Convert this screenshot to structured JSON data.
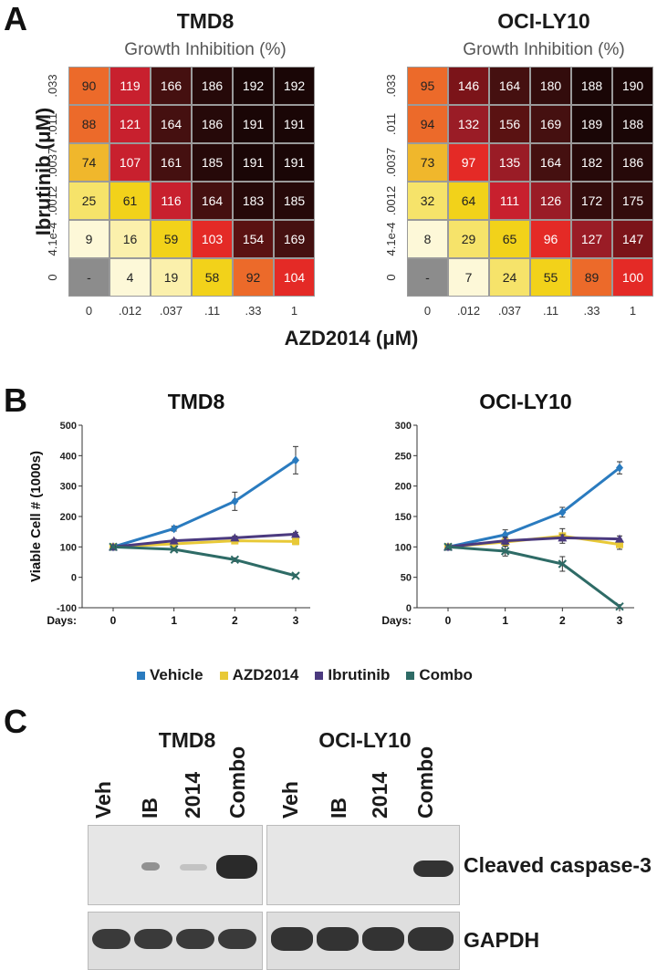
{
  "panels": {
    "a": "A",
    "b": "B",
    "c": "C"
  },
  "heatmaps": [
    {
      "title": "TMD8",
      "subtitle": "Growth Inhibition (%)",
      "rows": [
        [
          "90",
          "119",
          "166",
          "186",
          "192",
          "192"
        ],
        [
          "88",
          "121",
          "164",
          "186",
          "191",
          "191"
        ],
        [
          "74",
          "107",
          "161",
          "185",
          "191",
          "191"
        ],
        [
          "25",
          "61",
          "116",
          "164",
          "183",
          "185"
        ],
        [
          "9",
          "16",
          "59",
          "103",
          "154",
          "169"
        ],
        [
          "-",
          "4",
          "19",
          "58",
          "92",
          "104"
        ]
      ]
    },
    {
      "title": "OCI-LY10",
      "subtitle": "Growth Inhibition (%)",
      "rows": [
        [
          "95",
          "146",
          "164",
          "180",
          "188",
          "190"
        ],
        [
          "94",
          "132",
          "156",
          "169",
          "189",
          "188"
        ],
        [
          "73",
          "97",
          "135",
          "164",
          "182",
          "186"
        ],
        [
          "32",
          "64",
          "111",
          "126",
          "172",
          "175"
        ],
        [
          "8",
          "29",
          "65",
          "96",
          "127",
          "147"
        ],
        [
          "-",
          "7",
          "24",
          "55",
          "89",
          "100"
        ]
      ]
    }
  ],
  "heat_y_ticks": [
    ".033",
    ".011",
    ".0037",
    ".0012",
    "4.1e-4",
    "0"
  ],
  "heat_x_ticks": [
    "0",
    ".012",
    ".037",
    ".11",
    ".33",
    "1"
  ],
  "heat_y_title": "Ibrutinib (μM)",
  "heat_x_title": "AZD2014 (μM)",
  "chart_data": [
    {
      "type": "line",
      "title": "TMD8",
      "ylabel": "Viable Cell # (1000s)",
      "xlabel": "Days:",
      "x": [
        0,
        1,
        2,
        3
      ],
      "ylim": [
        -100,
        500
      ],
      "yticks": [
        "-100",
        "0",
        "100",
        "200",
        "300",
        "400",
        "500"
      ],
      "series": [
        {
          "name": "Vehicle",
          "values": [
            100,
            160,
            250,
            385
          ],
          "err": [
            5,
            8,
            30,
            45
          ]
        },
        {
          "name": "AZD2014",
          "values": [
            100,
            110,
            120,
            118
          ],
          "err": [
            3,
            5,
            8,
            10
          ]
        },
        {
          "name": "Ibrutinib",
          "values": [
            100,
            120,
            130,
            142
          ],
          "err": [
            3,
            5,
            6,
            6
          ]
        },
        {
          "name": "Combo",
          "values": [
            100,
            92,
            58,
            5
          ],
          "err": [
            3,
            5,
            6,
            5
          ]
        }
      ]
    },
    {
      "type": "line",
      "title": "OCI-LY10",
      "ylabel": "",
      "xlabel": "Days:",
      "x": [
        0,
        1,
        2,
        3
      ],
      "ylim": [
        0,
        300
      ],
      "yticks": [
        "0",
        "50",
        "100",
        "150",
        "200",
        "250",
        "300"
      ],
      "series": [
        {
          "name": "Vehicle",
          "values": [
            100,
            120,
            157,
            230
          ],
          "err": [
            3,
            8,
            8,
            10
          ]
        },
        {
          "name": "AZD2014",
          "values": [
            100,
            108,
            118,
            104
          ],
          "err": [
            3,
            6,
            12,
            8
          ]
        },
        {
          "name": "Ibrutinib",
          "values": [
            100,
            110,
            115,
            113
          ],
          "err": [
            3,
            6,
            5,
            5
          ]
        },
        {
          "name": "Combo",
          "values": [
            100,
            93,
            72,
            2
          ],
          "err": [
            3,
            8,
            12,
            3
          ]
        }
      ]
    }
  ],
  "legend": [
    {
      "name": "Vehicle",
      "color": "#2a7bbf"
    },
    {
      "name": "AZD2014",
      "color": "#e8c937"
    },
    {
      "name": "Ibrutinib",
      "color": "#4b3a7f"
    },
    {
      "name": "Combo",
      "color": "#2e6b66"
    }
  ],
  "blots": {
    "groups": [
      "TMD8",
      "OCI-LY10"
    ],
    "lanes": [
      "Veh",
      "IB",
      "2014",
      "Combo"
    ],
    "proteins": [
      "Cleaved caspase-3",
      "GAPDH"
    ]
  }
}
